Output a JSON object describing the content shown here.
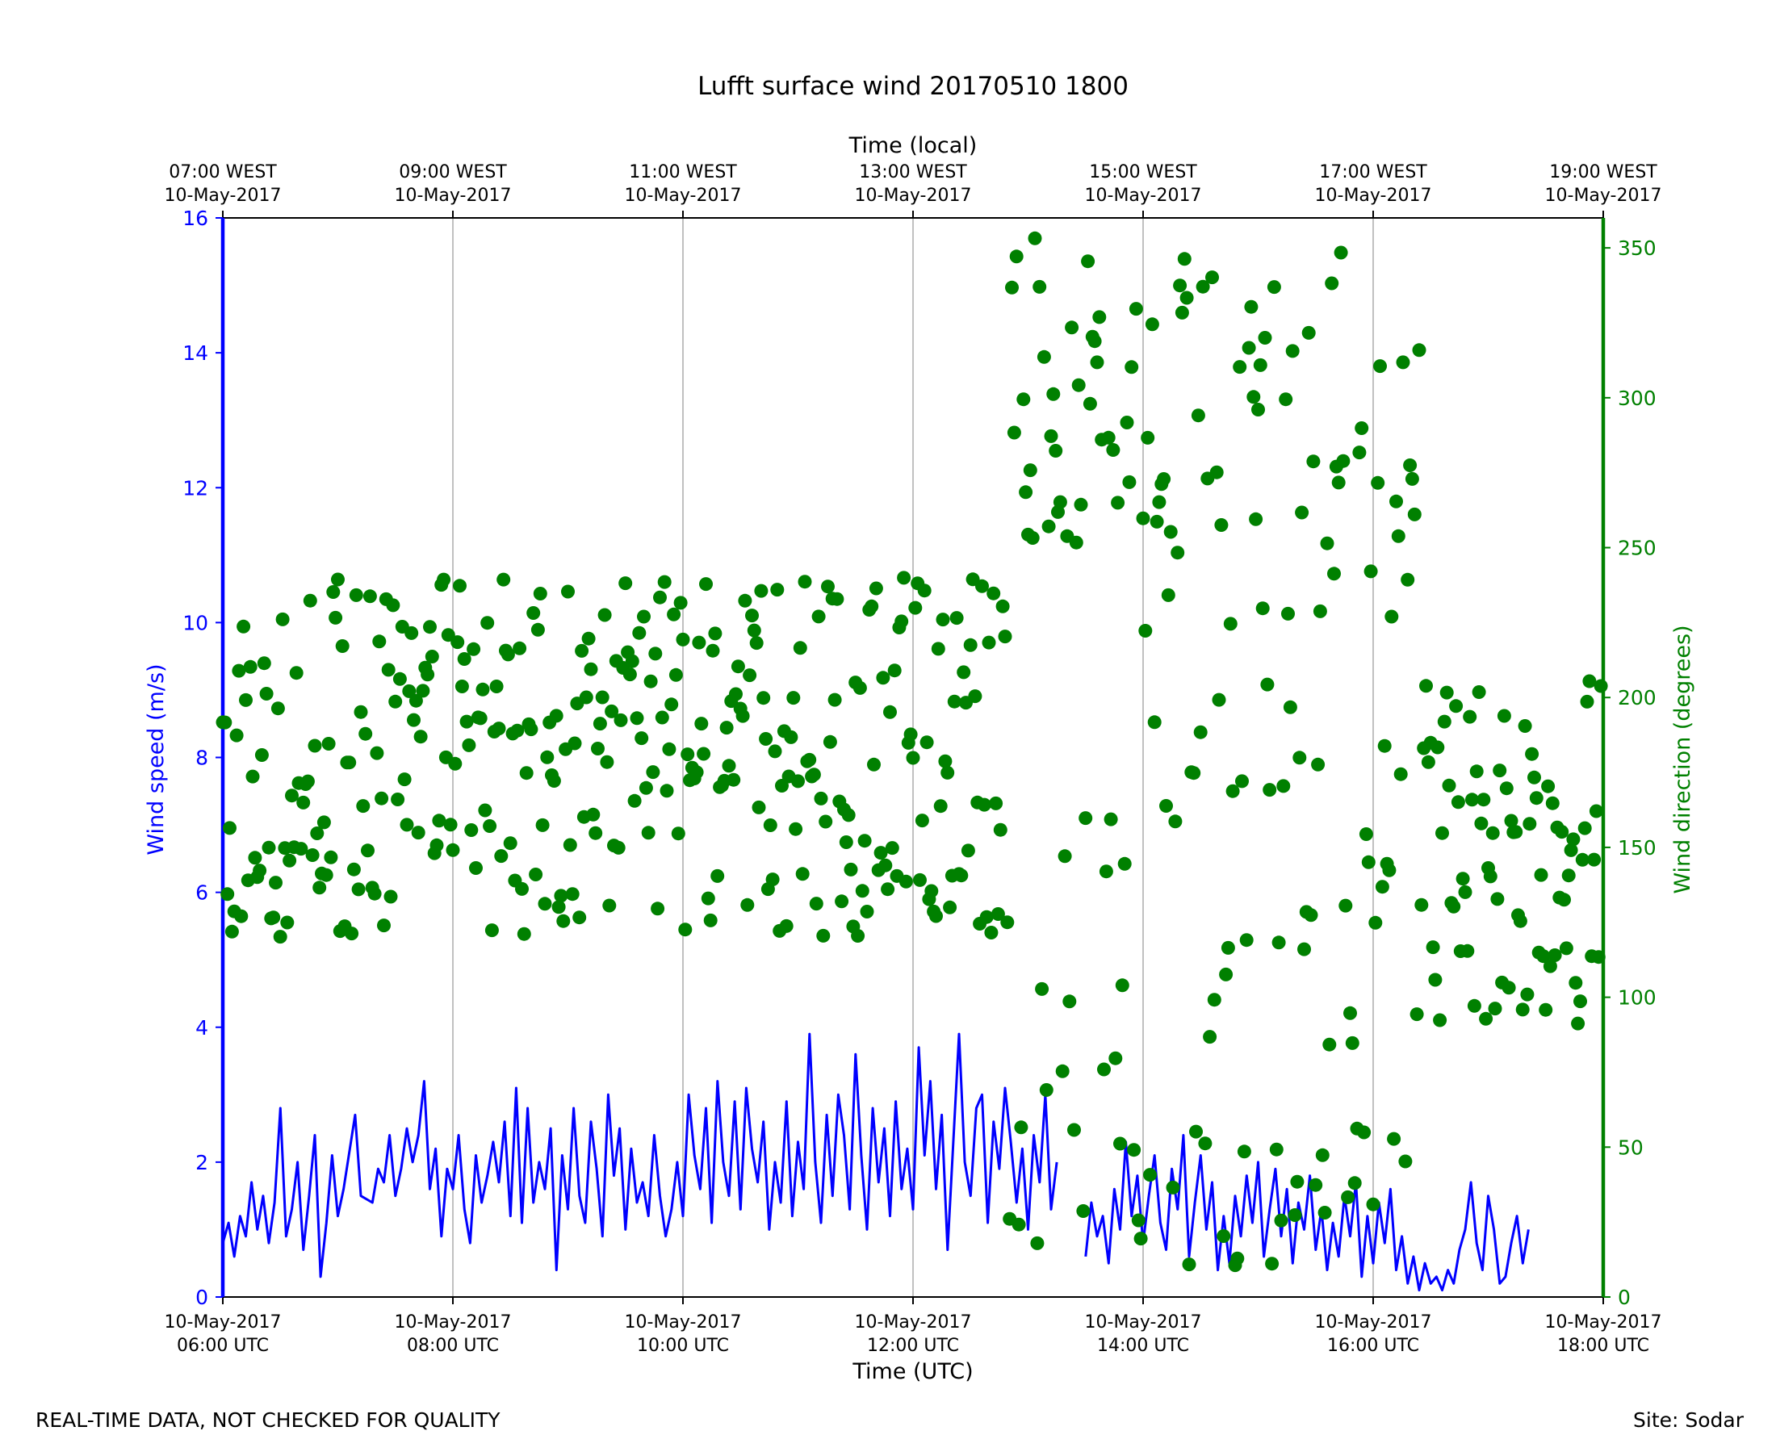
{
  "chart_data": {
    "type": "line",
    "title": "Lufft surface wind 20170510 1800",
    "xlabel": "Time (UTC)",
    "x2label": "Time (local)",
    "ylabel": "Wind speed (m/s)",
    "y2label": "Wind direction (degrees)",
    "xlim": [
      6,
      18
    ],
    "ylim": [
      0,
      16
    ],
    "y2lim": [
      0,
      360
    ],
    "grid": "vertical",
    "yticks": [
      0,
      2,
      4,
      6,
      8,
      10,
      12,
      14,
      16
    ],
    "y2ticks": [
      0,
      50,
      100,
      150,
      200,
      250,
      300,
      350
    ],
    "xticks": [
      {
        "x": 6,
        "line1": "10-May-2017",
        "line2": "06:00 UTC"
      },
      {
        "x": 8,
        "line1": "10-May-2017",
        "line2": "08:00 UTC"
      },
      {
        "x": 10,
        "line1": "10-May-2017",
        "line2": "10:00 UTC"
      },
      {
        "x": 12,
        "line1": "10-May-2017",
        "line2": "12:00 UTC"
      },
      {
        "x": 14,
        "line1": "10-May-2017",
        "line2": "14:00 UTC"
      },
      {
        "x": 16,
        "line1": "10-May-2017",
        "line2": "16:00 UTC"
      },
      {
        "x": 18,
        "line1": "10-May-2017",
        "line2": "18:00 UTC"
      }
    ],
    "x2ticks": [
      {
        "x": 6,
        "line1": "07:00 WEST",
        "line2": "10-May-2017"
      },
      {
        "x": 8,
        "line1": "09:00 WEST",
        "line2": "10-May-2017"
      },
      {
        "x": 10,
        "line1": "11:00 WEST",
        "line2": "10-May-2017"
      },
      {
        "x": 12,
        "line1": "13:00 WEST",
        "line2": "10-May-2017"
      },
      {
        "x": 14,
        "line1": "15:00 WEST",
        "line2": "10-May-2017"
      },
      {
        "x": 16,
        "line1": "17:00 WEST",
        "line2": "10-May-2017"
      },
      {
        "x": 18,
        "line1": "19:00 WEST",
        "line2": "10-May-2017"
      }
    ],
    "series": [
      {
        "name": "Wind speed (m/s)",
        "axis": "left",
        "color": "#0000ff",
        "style": "line",
        "points": [
          [
            6.0,
            0.8
          ],
          [
            6.05,
            1.1
          ],
          [
            6.1,
            0.6
          ],
          [
            6.15,
            1.2
          ],
          [
            6.2,
            0.9
          ],
          [
            6.25,
            1.7
          ],
          [
            6.3,
            1.0
          ],
          [
            6.35,
            1.5
          ],
          [
            6.4,
            0.8
          ],
          [
            6.45,
            1.4
          ],
          [
            6.5,
            2.8
          ],
          [
            6.55,
            0.9
          ],
          [
            6.6,
            1.3
          ],
          [
            6.65,
            2.0
          ],
          [
            6.7,
            0.7
          ],
          [
            6.75,
            1.5
          ],
          [
            6.8,
            2.4
          ],
          [
            6.85,
            0.3
          ],
          [
            6.9,
            1.1
          ],
          [
            6.95,
            2.1
          ],
          [
            7.0,
            1.2
          ],
          [
            7.05,
            1.6
          ],
          [
            7.15,
            2.7
          ],
          [
            7.2,
            1.5
          ],
          [
            7.3,
            1.4
          ],
          [
            7.35,
            1.9
          ],
          [
            7.4,
            1.7
          ],
          [
            7.45,
            2.4
          ],
          [
            7.5,
            1.5
          ],
          [
            7.55,
            1.9
          ],
          [
            7.6,
            2.5
          ],
          [
            7.65,
            2.0
          ],
          [
            7.7,
            2.4
          ],
          [
            7.75,
            3.2
          ],
          [
            7.8,
            1.6
          ],
          [
            7.85,
            2.2
          ],
          [
            7.9,
            0.9
          ],
          [
            7.95,
            1.9
          ],
          [
            8.0,
            1.6
          ],
          [
            8.05,
            2.4
          ],
          [
            8.1,
            1.3
          ],
          [
            8.15,
            0.8
          ],
          [
            8.2,
            2.1
          ],
          [
            8.25,
            1.4
          ],
          [
            8.3,
            1.8
          ],
          [
            8.35,
            2.3
          ],
          [
            8.4,
            1.7
          ],
          [
            8.45,
            2.6
          ],
          [
            8.5,
            1.2
          ],
          [
            8.55,
            3.1
          ],
          [
            8.6,
            1.1
          ],
          [
            8.65,
            2.8
          ],
          [
            8.7,
            1.4
          ],
          [
            8.75,
            2.0
          ],
          [
            8.8,
            1.6
          ],
          [
            8.85,
            2.5
          ],
          [
            8.9,
            0.4
          ],
          [
            8.95,
            2.1
          ],
          [
            9.0,
            1.3
          ],
          [
            9.05,
            2.8
          ],
          [
            9.1,
            1.5
          ],
          [
            9.15,
            1.1
          ],
          [
            9.2,
            2.6
          ],
          [
            9.25,
            1.9
          ],
          [
            9.3,
            0.9
          ],
          [
            9.35,
            3.0
          ],
          [
            9.4,
            1.8
          ],
          [
            9.45,
            2.5
          ],
          [
            9.5,
            1.0
          ],
          [
            9.55,
            2.2
          ],
          [
            9.6,
            1.4
          ],
          [
            9.65,
            1.7
          ],
          [
            9.7,
            1.2
          ],
          [
            9.75,
            2.4
          ],
          [
            9.8,
            1.5
          ],
          [
            9.85,
            0.9
          ],
          [
            9.9,
            1.3
          ],
          [
            9.95,
            2.0
          ],
          [
            10.0,
            1.2
          ],
          [
            10.05,
            3.0
          ],
          [
            10.1,
            2.1
          ],
          [
            10.15,
            1.6
          ],
          [
            10.2,
            2.8
          ],
          [
            10.25,
            1.1
          ],
          [
            10.3,
            3.2
          ],
          [
            10.35,
            2.0
          ],
          [
            10.4,
            1.5
          ],
          [
            10.45,
            2.9
          ],
          [
            10.5,
            1.3
          ],
          [
            10.55,
            3.1
          ],
          [
            10.6,
            2.2
          ],
          [
            10.65,
            1.7
          ],
          [
            10.7,
            2.6
          ],
          [
            10.75,
            1.0
          ],
          [
            10.8,
            2.0
          ],
          [
            10.85,
            1.4
          ],
          [
            10.9,
            2.9
          ],
          [
            10.95,
            1.2
          ],
          [
            11.0,
            2.3
          ],
          [
            11.05,
            1.6
          ],
          [
            11.1,
            3.9
          ],
          [
            11.15,
            2.0
          ],
          [
            11.2,
            1.1
          ],
          [
            11.25,
            2.7
          ],
          [
            11.3,
            1.5
          ],
          [
            11.35,
            3.0
          ],
          [
            11.4,
            2.4
          ],
          [
            11.45,
            1.3
          ],
          [
            11.5,
            3.6
          ],
          [
            11.55,
            2.1
          ],
          [
            11.6,
            1.0
          ],
          [
            11.65,
            2.8
          ],
          [
            11.7,
            1.7
          ],
          [
            11.75,
            2.5
          ],
          [
            11.8,
            1.2
          ],
          [
            11.85,
            2.9
          ],
          [
            11.9,
            1.6
          ],
          [
            11.95,
            2.2
          ],
          [
            12.0,
            1.3
          ],
          [
            12.05,
            3.7
          ],
          [
            12.1,
            2.1
          ],
          [
            12.15,
            3.2
          ],
          [
            12.2,
            1.6
          ],
          [
            12.25,
            2.7
          ],
          [
            12.3,
            0.7
          ],
          [
            12.35,
            2.3
          ],
          [
            12.4,
            3.9
          ],
          [
            12.45,
            2.0
          ],
          [
            12.5,
            1.5
          ],
          [
            12.55,
            2.8
          ],
          [
            12.6,
            3.0
          ],
          [
            12.65,
            1.1
          ],
          [
            12.7,
            2.6
          ],
          [
            12.75,
            1.9
          ],
          [
            12.8,
            3.1
          ],
          [
            12.85,
            2.3
          ],
          [
            12.9,
            1.4
          ],
          [
            12.95,
            2.2
          ],
          [
            13.0,
            1.0
          ],
          [
            13.05,
            2.4
          ],
          [
            13.1,
            1.7
          ],
          [
            13.15,
            3.0
          ],
          [
            13.2,
            1.3
          ],
          [
            13.25,
            2.0
          ]
        ],
        "points_b": [
          [
            13.5,
            0.6
          ],
          [
            13.55,
            1.4
          ],
          [
            13.6,
            0.9
          ],
          [
            13.65,
            1.2
          ],
          [
            13.7,
            0.5
          ],
          [
            13.75,
            1.6
          ],
          [
            13.8,
            1.0
          ],
          [
            13.85,
            2.3
          ],
          [
            13.9,
            1.2
          ],
          [
            13.95,
            1.8
          ],
          [
            14.0,
            0.8
          ],
          [
            14.05,
            1.5
          ],
          [
            14.1,
            2.1
          ],
          [
            14.15,
            1.1
          ],
          [
            14.2,
            0.7
          ],
          [
            14.25,
            1.9
          ],
          [
            14.3,
            1.3
          ],
          [
            14.35,
            2.4
          ],
          [
            14.4,
            0.6
          ],
          [
            14.45,
            1.4
          ],
          [
            14.5,
            2.1
          ],
          [
            14.55,
            1.0
          ],
          [
            14.6,
            1.7
          ],
          [
            14.65,
            0.4
          ],
          [
            14.7,
            1.2
          ],
          [
            14.75,
            0.5
          ],
          [
            14.8,
            1.5
          ],
          [
            14.85,
            0.9
          ],
          [
            14.9,
            1.8
          ],
          [
            14.95,
            1.1
          ],
          [
            15.0,
            2.0
          ],
          [
            15.05,
            0.6
          ],
          [
            15.1,
            1.3
          ],
          [
            15.15,
            1.9
          ],
          [
            15.2,
            0.9
          ],
          [
            15.25,
            1.6
          ],
          [
            15.3,
            0.5
          ],
          [
            15.35,
            1.4
          ],
          [
            15.4,
            1.0
          ],
          [
            15.45,
            1.8
          ],
          [
            15.5,
            0.7
          ],
          [
            15.55,
            1.3
          ],
          [
            15.6,
            0.4
          ],
          [
            15.65,
            1.1
          ],
          [
            15.7,
            0.6
          ],
          [
            15.75,
            1.5
          ],
          [
            15.8,
            0.9
          ],
          [
            15.85,
            1.7
          ],
          [
            15.9,
            0.3
          ],
          [
            15.95,
            1.2
          ],
          [
            16.0,
            0.5
          ],
          [
            16.05,
            1.4
          ],
          [
            16.1,
            0.8
          ],
          [
            16.15,
            1.6
          ],
          [
            16.2,
            0.4
          ],
          [
            16.25,
            0.9
          ],
          [
            16.3,
            0.2
          ],
          [
            16.35,
            0.6
          ],
          [
            16.4,
            0.1
          ],
          [
            16.45,
            0.5
          ],
          [
            16.5,
            0.2
          ],
          [
            16.55,
            0.3
          ],
          [
            16.6,
            0.1
          ],
          [
            16.65,
            0.4
          ],
          [
            16.7,
            0.2
          ],
          [
            16.75,
            0.7
          ],
          [
            16.8,
            1.0
          ],
          [
            16.85,
            1.7
          ],
          [
            16.9,
            0.8
          ],
          [
            16.95,
            0.4
          ],
          [
            17.0,
            1.5
          ],
          [
            17.05,
            1.0
          ],
          [
            17.1,
            0.2
          ],
          [
            17.15,
            0.3
          ],
          [
            17.2,
            0.8
          ],
          [
            17.25,
            1.2
          ],
          [
            17.3,
            0.5
          ],
          [
            17.35,
            1.0
          ]
        ]
      },
      {
        "name": "Wind direction (degrees)",
        "axis": "right",
        "color": "#008000",
        "style": "markers"
      }
    ]
  },
  "footer": {
    "left": "REAL-TIME DATA, NOT CHECKED FOR QUALITY",
    "right": "Site: Sodar"
  }
}
